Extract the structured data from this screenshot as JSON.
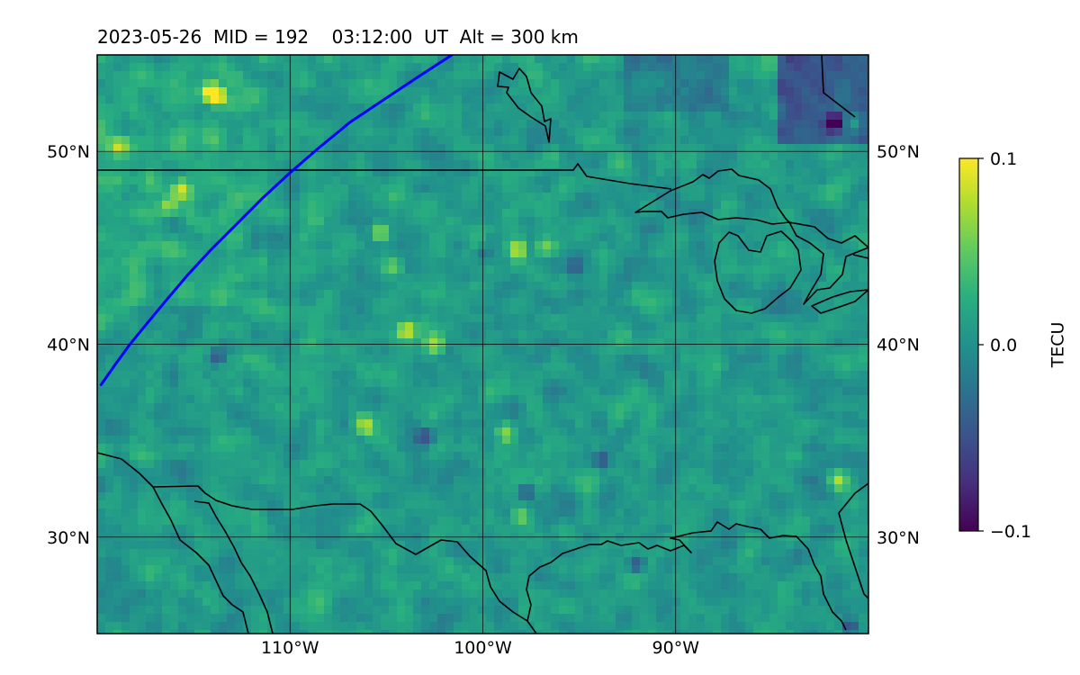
{
  "title": "2023-05-26  MID = 192    03:12:00  UT  Alt = 300 km",
  "map": {
    "lon_range": [
      -120,
      -80
    ],
    "lat_range": [
      25,
      55
    ],
    "lon_ticks": [
      {
        "value": -110,
        "label": "110°W"
      },
      {
        "value": -100,
        "label": "100°W"
      },
      {
        "value": -90,
        "label": "90°W"
      }
    ],
    "lat_ticks": [
      {
        "value": 30,
        "label": "30°N"
      },
      {
        "value": 40,
        "label": "40°N"
      },
      {
        "value": 50,
        "label": "50°N"
      }
    ],
    "gridlines": true,
    "track_color": "#0000ff",
    "track": [
      [
        -119.8,
        37.9
      ],
      [
        -119.1,
        38.9
      ],
      [
        -118.3,
        40.0
      ],
      [
        -117.4,
        41.1
      ],
      [
        -116.4,
        42.3
      ],
      [
        -115.3,
        43.6
      ],
      [
        -114.1,
        44.9
      ],
      [
        -112.8,
        46.2
      ],
      [
        -111.4,
        47.6
      ],
      [
        -110.1,
        48.8
      ],
      [
        -108.6,
        50.1
      ],
      [
        -106.9,
        51.5
      ],
      [
        -105.1,
        52.7
      ],
      [
        -103.3,
        53.9
      ],
      [
        -101.6,
        55.0
      ]
    ]
  },
  "colorbar": {
    "label": "TECU",
    "min": -0.1,
    "max": 0.1,
    "ticks": [
      {
        "value": 0.1,
        "label": "0.1"
      },
      {
        "value": 0.0,
        "label": "0.0"
      },
      {
        "value": -0.1,
        "label": "−0.1"
      }
    ],
    "colormap": "viridis"
  },
  "hotspots": [
    {
      "lon": -114.2,
      "lat": 53.1,
      "value": 0.1
    },
    {
      "lon": -113.8,
      "lat": 52.9,
      "value": 0.1
    },
    {
      "lon": -118.9,
      "lat": 50.3,
      "value": 0.06
    },
    {
      "lon": -115.6,
      "lat": 48.0,
      "value": 0.07
    },
    {
      "lon": -116.3,
      "lat": 47.1,
      "value": 0.07
    },
    {
      "lon": -105.3,
      "lat": 45.8,
      "value": 0.09
    },
    {
      "lon": -104.0,
      "lat": 40.7,
      "value": 0.1
    },
    {
      "lon": -102.4,
      "lat": 40.0,
      "value": 0.09
    },
    {
      "lon": -98.2,
      "lat": 44.9,
      "value": 0.08
    },
    {
      "lon": -96.8,
      "lat": 45.0,
      "value": 0.07
    },
    {
      "lon": -106.2,
      "lat": 35.8,
      "value": 0.07
    },
    {
      "lon": -81.6,
      "lat": 33.0,
      "value": 0.07
    },
    {
      "lon": -80.8,
      "lat": 51.5,
      "value": 0.06
    },
    {
      "lon": -98.1,
      "lat": 31.1,
      "value": 0.05
    },
    {
      "lon": -104.7,
      "lat": 44.0,
      "value": 0.06
    },
    {
      "lon": -98.8,
      "lat": 35.4,
      "value": 0.06
    }
  ],
  "lowspots": [
    {
      "lon": -81.8,
      "lat": 51.5,
      "value": -0.08
    },
    {
      "lon": -81.0,
      "lat": 25.3,
      "value": -0.08
    },
    {
      "lon": -92.0,
      "lat": 28.6,
      "value": -0.07
    },
    {
      "lon": -97.7,
      "lat": 32.4,
      "value": -0.06
    },
    {
      "lon": -93.8,
      "lat": 34.0,
      "value": -0.05
    },
    {
      "lon": -113.8,
      "lat": 39.3,
      "value": -0.06
    },
    {
      "lon": -103.0,
      "lat": 35.2,
      "value": -0.05
    },
    {
      "lon": -95.3,
      "lat": 43.9,
      "value": -0.05
    },
    {
      "lon": -100.0,
      "lat": 44.6,
      "value": -0.05
    }
  ]
}
